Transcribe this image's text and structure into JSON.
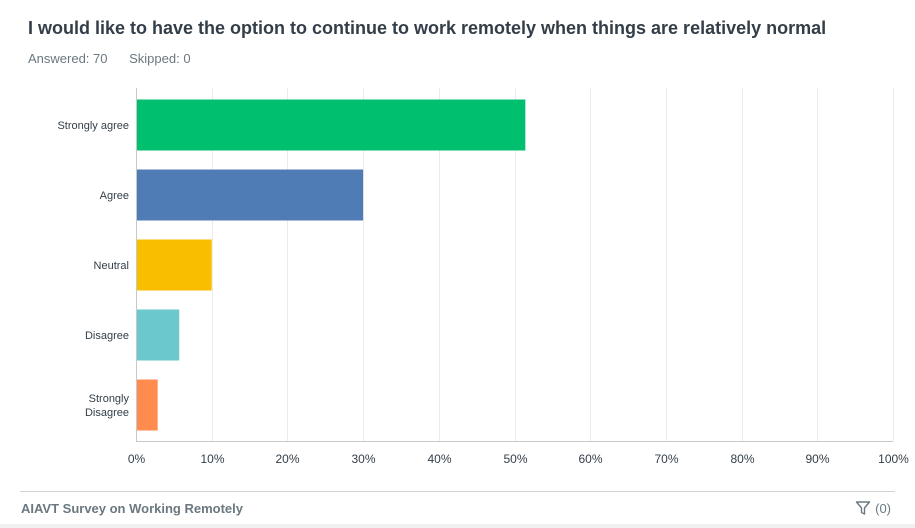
{
  "question": "I would like to have the option to continue to work remotely when things are relatively normal",
  "answered": "Answered: 70",
  "skipped": "Skipped: 0",
  "footer": {
    "survey_title": "AIAVT Survey on Working Remotely",
    "filter_count": "(0)"
  },
  "chart_data": {
    "type": "bar",
    "orientation": "horizontal",
    "categories": [
      "Strongly agree",
      "Agree",
      "Neutral",
      "Disagree",
      "Strongly Disagree"
    ],
    "values": [
      51.43,
      30.0,
      10.0,
      5.71,
      2.86
    ],
    "colors": [
      "#00bf6f",
      "#507cb6",
      "#f9be00",
      "#6bc8cd",
      "#ff8b4f"
    ],
    "xlim": [
      0,
      100
    ],
    "xticks": [
      "0%",
      "10%",
      "20%",
      "30%",
      "40%",
      "50%",
      "60%",
      "70%",
      "80%",
      "90%",
      "100%"
    ],
    "grid": true
  }
}
